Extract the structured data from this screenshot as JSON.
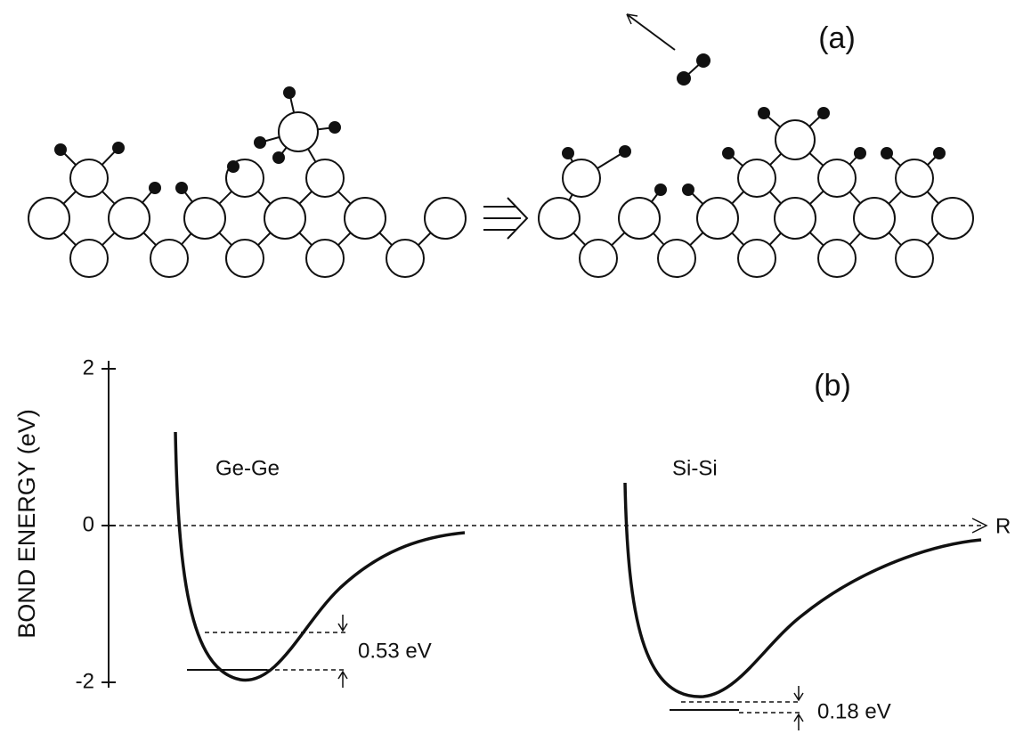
{
  "panel_a": {
    "label": "(a)"
  },
  "panel_b": {
    "label": "(b)",
    "y_axis_label": "BOND ENERGY (eV)",
    "yticks": [
      2,
      0,
      -2
    ],
    "x_axis_label": "R",
    "curves": [
      {
        "name": "Ge-Ge",
        "gap_label": "0.53 eV"
      },
      {
        "name": "Si-Si",
        "gap_label": "0.18 eV"
      }
    ]
  }
}
